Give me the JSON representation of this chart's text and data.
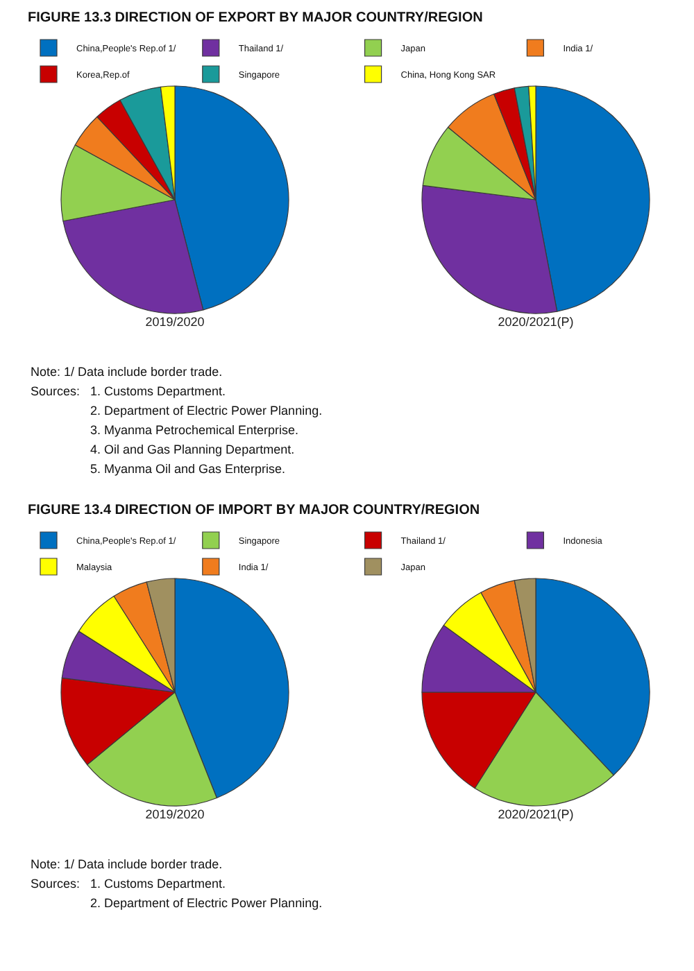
{
  "chart_data": [
    {
      "type": "pie",
      "title": "FIGURE 13.3 DIRECTION OF EXPORT BY MAJOR COUNTRY/REGION",
      "categories": [
        "China,People's Rep.of 1/",
        "Thailand 1/",
        "Japan",
        "India 1/",
        "Korea,Rep.of",
        "Singapore",
        "China, Hong Kong SAR"
      ],
      "colors": [
        "#0070c0",
        "#7030a0",
        "#92d050",
        "#f07c1e",
        "#c80000",
        "#1a9a9a",
        "#ffff00"
      ],
      "series": [
        {
          "name": "2019/2020",
          "values": [
            46,
            26,
            11,
            5,
            4,
            6,
            2
          ]
        },
        {
          "name": "2020/2021(P)",
          "values": [
            47,
            30,
            9,
            8,
            3,
            2,
            1
          ]
        }
      ],
      "legend": "top",
      "annotations": [
        "Note: 1/ Data include border trade.",
        "Sources:",
        "1. Customs Department.",
        "2. Department of Electric Power Planning.",
        "3. Myanma Petrochemical Enterprise.",
        "4. Oil and Gas Planning Department.",
        "5. Myanma Oil and Gas Enterprise."
      ]
    },
    {
      "type": "pie",
      "title": "FIGURE 13.4 DIRECTION OF IMPORT BY MAJOR COUNTRY/REGION",
      "categories": [
        "China,People's Rep.of 1/",
        "Singapore",
        "Thailand 1/",
        "Indonesia",
        "Malaysia",
        "India 1/",
        "Japan"
      ],
      "colors": [
        "#0070c0",
        "#92d050",
        "#c80000",
        "#7030a0",
        "#ffff00",
        "#f07c1e",
        "#a09060"
      ],
      "series": [
        {
          "name": "2019/2020",
          "values": [
            44,
            20,
            13,
            7,
            7,
            5,
            4
          ]
        },
        {
          "name": "2020/2021(P)",
          "values": [
            38,
            21,
            16,
            10,
            7,
            5,
            3
          ]
        }
      ],
      "legend": "top",
      "annotations": [
        "Note: 1/ Data include border trade.",
        "Sources:",
        "1. Customs Department.",
        "2. Department of Electric Power Planning."
      ]
    }
  ]
}
